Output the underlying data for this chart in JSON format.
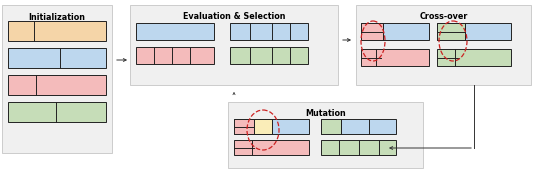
{
  "title_init": "Initialization",
  "title_eval": "Evaluation & Selection",
  "title_cross": "Cross-over",
  "title_mut": "Mutation",
  "colors": {
    "orange": "#F5D5A8",
    "blue": "#BDD7EE",
    "pink": "#F4BBBB",
    "green": "#C6DDB8",
    "red_dashed": "#CC2222",
    "yellow": "#FAEDB8",
    "panel_bg": "#F0F0F0",
    "panel_edge": "#BBBBBB"
  },
  "fig_bg": "#FFFFFF"
}
